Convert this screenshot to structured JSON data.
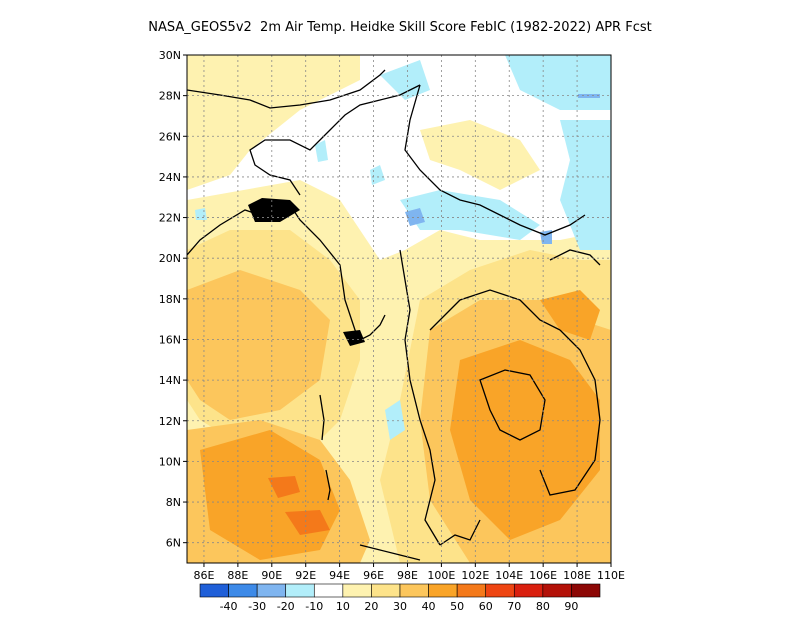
{
  "title": "NASA_GEOS5v2  2m Air Temp. Heidke Skill Score FebIC (1982-2022) APR Fcst",
  "map": {
    "lon_labels": [
      "86E",
      "88E",
      "90E",
      "92E",
      "94E",
      "96E",
      "98E",
      "100E",
      "102E",
      "104E",
      "106E",
      "108E",
      "110E"
    ],
    "lat_labels": [
      "6N",
      "8N",
      "10N",
      "12N",
      "14N",
      "16N",
      "18N",
      "20N",
      "22N",
      "24N",
      "26N",
      "28N",
      "30N"
    ]
  },
  "colorbar": {
    "colors": [
      "#1f5fd8",
      "#3d8ae8",
      "#7fb5f0",
      "#b2eefa",
      "#ffffff",
      "#fef2b0",
      "#fde38a",
      "#fcc65c",
      "#f9a428",
      "#f4791a",
      "#ee4512",
      "#d91f0e",
      "#b31108",
      "#8c0705"
    ],
    "labels": [
      "-40",
      "-30",
      "-20",
      "-10",
      "10",
      "20",
      "30",
      "40",
      "50",
      "60",
      "70",
      "80",
      "90"
    ]
  }
}
